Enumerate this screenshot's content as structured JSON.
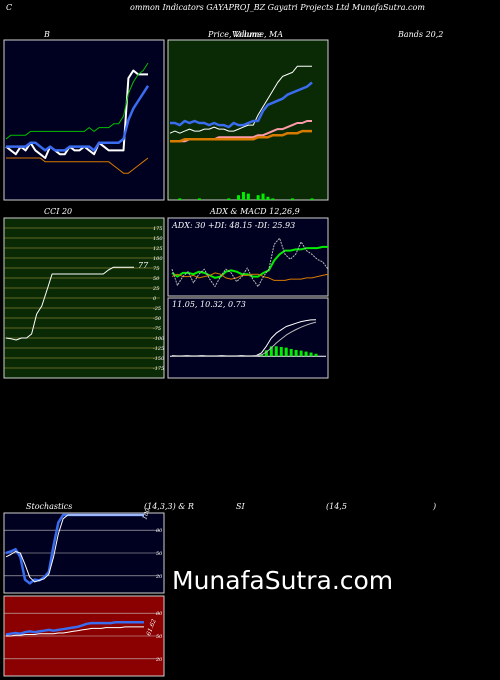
{
  "header": {
    "c": "C",
    "title": "ommon Indicators GAYAPROJ_BZ Gayatri Projects Ltd MunafaSutra.com"
  },
  "panels": {
    "bb": {
      "title": "B"
    },
    "price": {
      "title": "Price, Volume, MA",
      "title2": "Volume"
    },
    "bands": {
      "title": "Bands 20,2"
    },
    "cci": {
      "title": "CCI 20",
      "value": "77"
    },
    "adx": {
      "title": "ADX  & MACD 12,26,9",
      "adx_text": "ADX: 30  +DI: 48.15 -DI: 25.93",
      "macd_text": "11.05, 10.32, 0.73"
    },
    "stoch": {
      "title": "Stochastics",
      "params": "(14,3,3) & R",
      "label_si": "SI",
      "params2": "(14,5",
      "close": ")",
      "value": "100"
    },
    "rsi": {
      "value": "61.62"
    }
  },
  "watermark": "MunafaSutra.com",
  "colors": {
    "green_bg": "#0a2a06",
    "dark_bg": "#000020",
    "red_bg": "#8b0000",
    "blue": "#3a6cf0",
    "ma_green": "#00c000",
    "orange": "#d77a00"
  },
  "chart_data": [
    {
      "type": "line",
      "name": "bollinger",
      "title": "B",
      "x": [
        0,
        1,
        2,
        3,
        4,
        5,
        6,
        7,
        8,
        9,
        10,
        11,
        12,
        13,
        14,
        15,
        16,
        17,
        18,
        19,
        20,
        21,
        22,
        23,
        24,
        25,
        26,
        27,
        28,
        29
      ],
      "series": [
        {
          "values": [
            141,
            140,
            139,
            141,
            140,
            142,
            140,
            139,
            138,
            141,
            140,
            139,
            139,
            141,
            140,
            140,
            141,
            140,
            139,
            142,
            141,
            140,
            140,
            140,
            140,
            159,
            161,
            160,
            160,
            160
          ]
        },
        {
          "values": [
            141,
            141,
            141,
            141,
            141,
            142,
            142,
            141,
            140,
            141,
            140,
            140,
            140,
            141,
            141,
            141,
            141,
            141,
            140,
            142,
            142,
            142,
            142,
            142,
            143,
            148,
            151,
            153,
            155,
            157
          ]
        },
        {
          "values": [
            143,
            144,
            144,
            144,
            144,
            145,
            145,
            145,
            145,
            145,
            145,
            145,
            145,
            145,
            145,
            145,
            145,
            146,
            145,
            146,
            146,
            146,
            147,
            147,
            149,
            155,
            158,
            160,
            161,
            163
          ]
        },
        {
          "values": [
            138,
            138,
            138,
            138,
            138,
            138,
            138,
            138,
            137,
            137,
            137,
            137,
            137,
            137,
            137,
            137,
            137,
            137,
            137,
            137,
            137,
            137,
            136,
            135,
            134,
            134,
            135,
            136,
            137,
            138
          ]
        }
      ],
      "ylim": [
        128,
        168
      ]
    },
    {
      "type": "line",
      "name": "price_volume_ma",
      "title": "Price, Volume, MA",
      "x": [
        0,
        1,
        2,
        3,
        4,
        5,
        6,
        7,
        8,
        9,
        10,
        11,
        12,
        13,
        14,
        15,
        16,
        17,
        18,
        19,
        20,
        21,
        22,
        23,
        24,
        25,
        26,
        27,
        28,
        29
      ],
      "series": [
        {
          "values": [
            136,
            137,
            136,
            137,
            138,
            137,
            137,
            138,
            138,
            139,
            138,
            138,
            137,
            137,
            138,
            139,
            140,
            140,
            145,
            149,
            153,
            157,
            161,
            164,
            165,
            166,
            169,
            169,
            169,
            169
          ]
        },
        {
          "values": [
            141,
            141,
            140,
            142,
            141,
            142,
            141,
            141,
            140,
            141,
            140,
            140,
            139,
            141,
            140,
            140,
            141,
            142,
            142,
            147,
            150,
            151,
            152,
            153,
            155,
            156,
            157,
            158,
            159,
            161
          ]
        },
        {
          "values": [
            132,
            132,
            132,
            132,
            133,
            133,
            133,
            133,
            133,
            133,
            134,
            134,
            134,
            134,
            134,
            134,
            134,
            134,
            135,
            135,
            136,
            137,
            138,
            138,
            139,
            140,
            141,
            141,
            142,
            142
          ]
        },
        {
          "values": [
            132,
            132,
            132,
            133,
            133,
            133,
            133,
            133,
            133,
            133,
            133,
            133,
            133,
            133,
            133,
            133,
            133,
            133,
            134,
            134,
            134,
            135,
            135,
            135,
            136,
            136,
            136,
            137,
            137,
            137
          ]
        }
      ],
      "volume": [
        0,
        0,
        1,
        0,
        0,
        0,
        1,
        0,
        0,
        0,
        0,
        0,
        1,
        0,
        3,
        5,
        4,
        0,
        3,
        4,
        2,
        1,
        0,
        0,
        0,
        1,
        0,
        0,
        0,
        1
      ],
      "ylim": [
        105,
        180
      ]
    },
    {
      "type": "line",
      "name": "cci",
      "title": "CCI 20",
      "x": [
        0,
        1,
        2,
        3,
        4,
        5,
        6,
        7,
        8,
        9,
        10,
        11,
        12,
        13,
        14,
        15,
        16,
        17,
        18,
        19,
        20,
        21,
        22,
        23,
        24,
        25
      ],
      "series": [
        {
          "values": [
            -100,
            -102,
            -105,
            -100,
            -100,
            -90,
            -40,
            -20,
            20,
            60,
            60,
            60,
            60,
            60,
            60,
            60,
            60,
            60,
            60,
            60,
            70,
            77,
            77,
            77,
            77,
            77
          ]
        }
      ],
      "yticks": [
        175,
        150,
        125,
        100,
        75,
        50,
        25,
        0,
        -25,
        -50,
        -75,
        -100,
        -125,
        -150,
        -175
      ],
      "ylim": [
        -190,
        190
      ]
    },
    {
      "type": "line",
      "name": "adx",
      "x": [
        0,
        1,
        2,
        3,
        4,
        5,
        6,
        7,
        8,
        9,
        10,
        11,
        12,
        13,
        14,
        15,
        16,
        17,
        18,
        19,
        20,
        21,
        22,
        23,
        24,
        25,
        26,
        27,
        28,
        29
      ],
      "series": [
        {
          "values": [
            27,
            24,
            27,
            27,
            26,
            28,
            27,
            25,
            23,
            24,
            28,
            29,
            28,
            26,
            26,
            24,
            24,
            27,
            29,
            37,
            42,
            45,
            45,
            46,
            46,
            47,
            47,
            47,
            48,
            48
          ]
        },
        {
          "values": [
            24,
            26,
            24,
            24,
            25,
            23,
            24,
            25,
            27,
            26,
            23,
            22,
            23,
            25,
            25,
            26,
            26,
            24,
            23,
            21,
            21,
            21,
            22,
            22,
            22,
            23,
            23,
            24,
            25,
            26
          ]
        },
        {
          "values": [
            30,
            17,
            24,
            28,
            19,
            26,
            30,
            22,
            16,
            24,
            30,
            27,
            20,
            24,
            31,
            22,
            16,
            24,
            30,
            50,
            55,
            42,
            38,
            42,
            52,
            45,
            42,
            38,
            36,
            30
          ]
        }
      ],
      "ylim": [
        10,
        60
      ]
    },
    {
      "type": "line",
      "name": "macd",
      "x": [
        0,
        1,
        2,
        3,
        4,
        5,
        6,
        7,
        8,
        9,
        10,
        11,
        12,
        13,
        14,
        15,
        16,
        17,
        18,
        19,
        20,
        21,
        22,
        23,
        24,
        25,
        26,
        27,
        28,
        29
      ],
      "series": [
        {
          "values": [
            0.2,
            0.1,
            0.1,
            0.2,
            0.1,
            0.1,
            0.2,
            0.1,
            0.1,
            0.1,
            0.2,
            0.1,
            0.1,
            0.1,
            0.2,
            0.1,
            0.1,
            0.2,
            1.0,
            3.0,
            5.5,
            7.0,
            8.0,
            9.0,
            9.5,
            10.0,
            10.5,
            10.8,
            11.0,
            11.05
          ]
        },
        {
          "values": [
            0.1,
            0.1,
            0.1,
            0.1,
            0.1,
            0.1,
            0.1,
            0.1,
            0.1,
            0.1,
            0.1,
            0.1,
            0.1,
            0.1,
            0.1,
            0.1,
            0.1,
            0.1,
            0.4,
            1.2,
            2.5,
            4.0,
            5.2,
            6.4,
            7.3,
            8.1,
            8.8,
            9.4,
            9.9,
            10.32
          ]
        },
        {
          "values": [
            0,
            0,
            0,
            0,
            0,
            0,
            0,
            0,
            0,
            0,
            0,
            0,
            0,
            0,
            0,
            0,
            0,
            0,
            0.6,
            1.8,
            3.0,
            3.0,
            2.8,
            2.6,
            2.2,
            1.9,
            1.7,
            1.4,
            1.1,
            0.73
          ]
        }
      ],
      "ylim": [
        -6,
        14
      ]
    },
    {
      "type": "line",
      "name": "stochastics",
      "title": "Stochastics",
      "x": [
        0,
        1,
        2,
        3,
        4,
        5,
        6,
        7,
        8,
        9,
        10,
        11,
        12,
        13,
        14,
        15,
        16,
        17,
        18,
        19,
        20,
        21,
        22,
        23,
        24,
        25,
        26,
        27,
        28,
        29
      ],
      "series": [
        {
          "values": [
            50,
            52,
            55,
            45,
            15,
            10,
            15,
            14,
            18,
            25,
            60,
            90,
            100,
            100,
            100,
            100,
            100,
            100,
            100,
            100,
            100,
            100,
            100,
            100,
            100,
            100,
            100,
            100,
            100,
            100
          ]
        },
        {
          "values": [
            45,
            48,
            52,
            50,
            35,
            18,
            12,
            14,
            16,
            22,
            45,
            75,
            95,
            100,
            100,
            100,
            100,
            100,
            100,
            100,
            100,
            100,
            100,
            100,
            100,
            100,
            100,
            100,
            100,
            100
          ]
        }
      ],
      "yticks": [
        80,
        50,
        20
      ],
      "ylim": [
        0,
        100
      ]
    },
    {
      "type": "line",
      "name": "rsi",
      "x": [
        0,
        1,
        2,
        3,
        4,
        5,
        6,
        7,
        8,
        9,
        10,
        11,
        12,
        13,
        14,
        15,
        16,
        17,
        18,
        19,
        20,
        21,
        22,
        23,
        24,
        25,
        26,
        27,
        28,
        29
      ],
      "series": [
        {
          "values": [
            52,
            53,
            54,
            53,
            55,
            56,
            55,
            56,
            57,
            58,
            57,
            58,
            59,
            60,
            61,
            62,
            64,
            66,
            67,
            67,
            67,
            67,
            67,
            68,
            68,
            68,
            68,
            68,
            68,
            68
          ]
        },
        {
          "values": [
            50,
            50,
            51,
            51,
            52,
            52,
            52,
            53,
            53,
            53,
            53,
            54,
            54,
            55,
            56,
            57,
            58,
            59,
            60,
            60,
            60,
            61,
            61,
            61,
            61,
            62,
            62,
            62,
            62,
            62
          ]
        }
      ],
      "yticks": [
        80,
        50,
        20
      ],
      "ylim": [
        0,
        100
      ]
    }
  ]
}
